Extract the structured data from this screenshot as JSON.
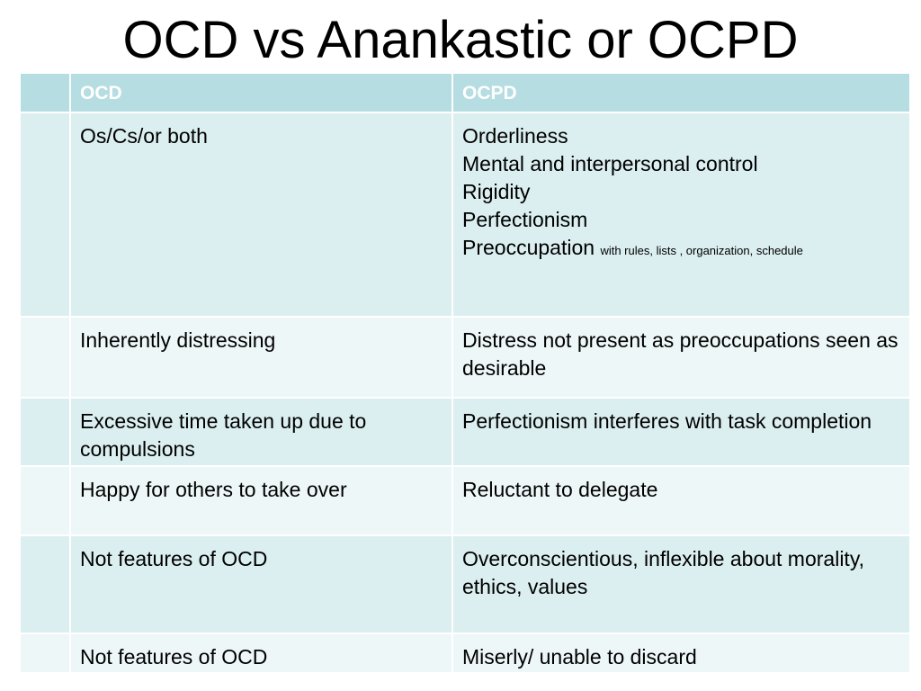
{
  "title": "OCD vs Anankastic or OCPD",
  "table": {
    "headers": [
      "",
      "OCD",
      "OCPD"
    ],
    "rows": [
      {
        "ocd": "Os/Cs/or both",
        "ocpd_lines": [
          "Orderliness",
          "Mental and interpersonal control",
          "Rigidity",
          "Perfectionism"
        ],
        "ocpd_last_main": "Preoccupation",
        "ocpd_last_small": "with rules, lists , organization, schedule"
      },
      {
        "ocd": "Inherently distressing",
        "ocpd": "Distress not present as preoccupations seen as desirable"
      },
      {
        "ocd": "Excessive time taken up due to compulsions",
        "ocpd": "Perfectionism interferes with task completion"
      },
      {
        "ocd": "Happy for others to take over",
        "ocpd": "Reluctant to delegate"
      },
      {
        "ocd": "Not features of OCD",
        "ocpd": "Overconscientious, inflexible about morality, ethics, values"
      },
      {
        "ocd": "Not features of OCD",
        "ocpd": "Miserly/ unable to discard"
      }
    ]
  },
  "colors": {
    "header_bg": "#b6dde1",
    "row_dark": "#dbeef0",
    "row_light": "#eef7f8"
  }
}
